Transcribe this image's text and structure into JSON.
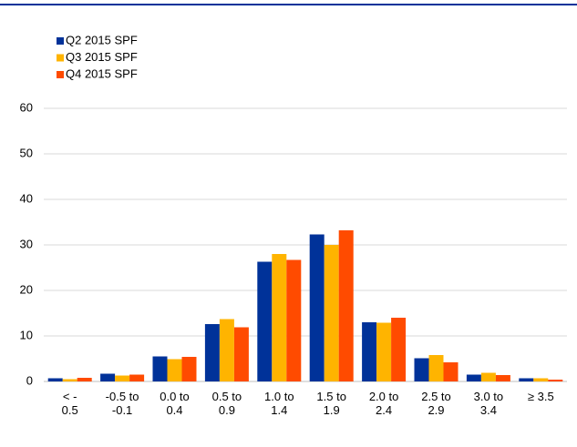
{
  "chart_data": {
    "type": "bar",
    "categories": [
      [
        "<   -",
        "0.5"
      ],
      [
        "-0.5 to",
        "-0.1"
      ],
      [
        "0.0 to",
        "0.4"
      ],
      [
        "0.5 to",
        "0.9"
      ],
      [
        "1.0 to",
        "1.4"
      ],
      [
        "1.5 to",
        "1.9"
      ],
      [
        "2.0 to",
        "2.4"
      ],
      [
        "2.5 to",
        "2.9"
      ],
      [
        "3.0 to",
        "3.4"
      ],
      [
        "≥ 3.5"
      ]
    ],
    "series": [
      {
        "name": "Q2 2015 SPF",
        "color": "#003299",
        "values": [
          0.7,
          1.7,
          5.5,
          12.6,
          26.3,
          32.3,
          13.0,
          5.1,
          1.5,
          0.7
        ]
      },
      {
        "name": "Q3 2015 SPF",
        "color": "#ffb400",
        "values": [
          0.5,
          1.3,
          4.9,
          13.7,
          28.0,
          30.0,
          12.9,
          5.8,
          1.9,
          0.7
        ]
      },
      {
        "name": "Q4 2015 SPF",
        "color": "#ff4b00",
        "values": [
          0.8,
          1.5,
          5.4,
          11.9,
          26.7,
          33.2,
          14.0,
          4.2,
          1.4,
          0.4
        ]
      }
    ],
    "ylim": [
      0,
      60
    ],
    "yticks": [
      0,
      10,
      20,
      30,
      40,
      50,
      60
    ],
    "grid": true,
    "legend": "top-left"
  }
}
